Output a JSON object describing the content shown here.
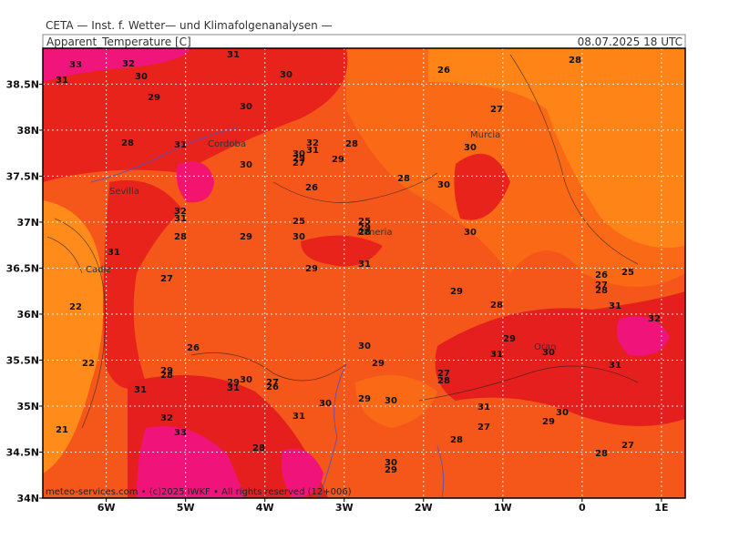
{
  "header": {
    "institute": "CETA — Inst. f. Wetter— und Klimafolgenanalysen —",
    "title": "Apparent_Temperature [C]",
    "time": "08.07.2025  18 UTC"
  },
  "map": {
    "xlim": [
      -6.8,
      1.3
    ],
    "ylim": [
      34,
      38.89
    ],
    "xticks": [
      {
        "value": -6,
        "label": "6W"
      },
      {
        "value": -5,
        "label": "5W"
      },
      {
        "value": -4,
        "label": "4W"
      },
      {
        "value": -3,
        "label": "3W"
      },
      {
        "value": -2,
        "label": "2W"
      },
      {
        "value": -1,
        "label": "1W"
      },
      {
        "value": 0,
        "label": "0"
      },
      {
        "value": 1,
        "label": "1E"
      }
    ],
    "yticks": [
      {
        "value": 34,
        "label": "34N"
      },
      {
        "value": 34.5,
        "label": "34.5N"
      },
      {
        "value": 35,
        "label": "35N"
      },
      {
        "value": 35.5,
        "label": "35.5N"
      },
      {
        "value": 36,
        "label": "36N"
      },
      {
        "value": 36.5,
        "label": "36.5N"
      },
      {
        "value": 37,
        "label": "37N"
      },
      {
        "value": 37.5,
        "label": "37.5N"
      },
      {
        "value": 38,
        "label": "38N"
      },
      {
        "value": 38.5,
        "label": "38.5N"
      }
    ],
    "grid": true,
    "cities": [
      "Cordoba",
      "Sevilla",
      "Cadiz",
      "Almeria",
      "Murcia",
      "Oran"
    ],
    "contour_labels": [
      33,
      32,
      31,
      31,
      30,
      30,
      29,
      30,
      28,
      31,
      32,
      31,
      30,
      29,
      27,
      28,
      29,
      30,
      26,
      28,
      27,
      30,
      28,
      30,
      26,
      32,
      31,
      25,
      25,
      29,
      28,
      30,
      28,
      29,
      30,
      31,
      31,
      29,
      27,
      26,
      25,
      27,
      28,
      29,
      28,
      31,
      22,
      32,
      26,
      30,
      29,
      31,
      30,
      22,
      29,
      31,
      29,
      28,
      27,
      28,
      30,
      29,
      31,
      27,
      26,
      31,
      30,
      29,
      30,
      31,
      30,
      29,
      27,
      32,
      31,
      21,
      33,
      28,
      27,
      28,
      28,
      30,
      29
    ],
    "footer": "meteo-services.com • (c)2025 IWKF • All rights reserved (12+006)"
  }
}
